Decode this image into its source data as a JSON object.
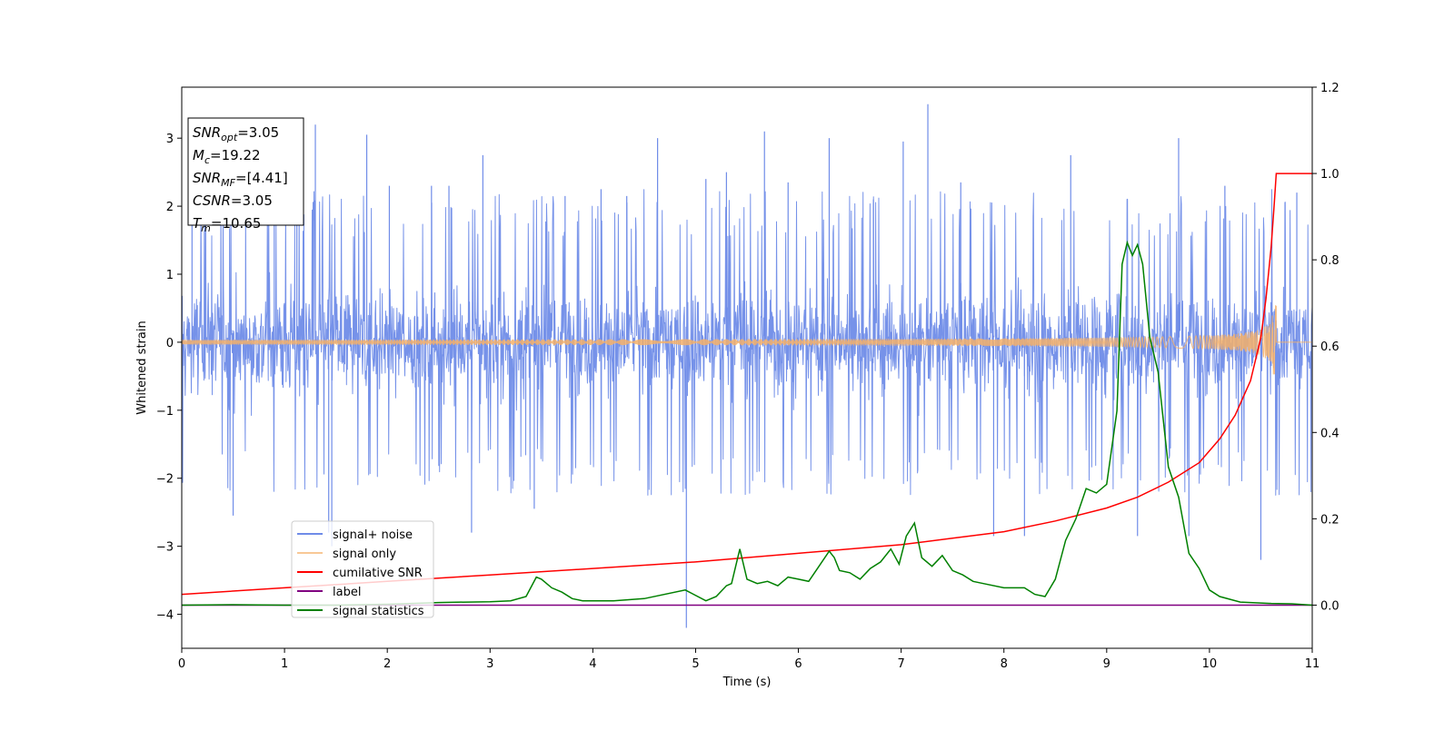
{
  "chart_data": {
    "type": "line",
    "xlabel": "Time (s)",
    "ylabel": "Whitened strain",
    "xlim": [
      0,
      11
    ],
    "ylim": [
      -4.5,
      3.75
    ],
    "y2lim": [
      -0.1,
      1.2
    ],
    "x_ticks": [
      0,
      1,
      2,
      3,
      4,
      5,
      6,
      7,
      8,
      9,
      10,
      11
    ],
    "y_ticks": [
      -4,
      -3,
      -2,
      -1,
      0,
      1,
      2,
      3
    ],
    "y_tick_labels": [
      "−4",
      "−3",
      "−2",
      "−1",
      "0",
      "1",
      "2",
      "3"
    ],
    "y2_ticks": [
      0.0,
      0.2,
      0.4,
      0.6,
      0.8,
      1.0,
      1.2
    ],
    "y2_tick_labels": [
      "0.0",
      "0.2",
      "0.4",
      "0.6",
      "0.8",
      "1.0",
      "1.2"
    ],
    "grid": false,
    "legend_placement": "lower-left",
    "annotation": {
      "lines": [
        {
          "sym": "SNR",
          "sub": "opt",
          "value": "=3.05"
        },
        {
          "sym": "M",
          "sub": "c",
          "value": "=19.22"
        },
        {
          "sym": "SNR",
          "sub": "MF",
          "value": "=[4.41]"
        },
        {
          "sym": "CSNR",
          "sub": "",
          "value": "=3.05"
        },
        {
          "sym": "T",
          "sub": "m",
          "value": "=10.65"
        }
      ]
    },
    "series": [
      {
        "name": "signal+ noise",
        "axis": "left",
        "color": "#6f8ce8",
        "kind": "noise",
        "envelope": 1.5,
        "spikes": [
          {
            "x": 0.1,
            "y": 2.0
          },
          {
            "x": 0.5,
            "y": -2.55
          },
          {
            "x": 0.9,
            "y": 2.5
          },
          {
            "x": 1.12,
            "y": 2.5
          },
          {
            "x": 1.3,
            "y": 3.2
          },
          {
            "x": 1.43,
            "y": -2.8
          },
          {
            "x": 1.46,
            "y": -3.0
          },
          {
            "x": 1.8,
            "y": 3.05
          },
          {
            "x": 2.02,
            "y": 2.3
          },
          {
            "x": 2.43,
            "y": 2.3
          },
          {
            "x": 2.6,
            "y": 2.3
          },
          {
            "x": 2.82,
            "y": -2.8
          },
          {
            "x": 2.93,
            "y": 2.75
          },
          {
            "x": 3.43,
            "y": -2.45
          },
          {
            "x": 3.73,
            "y": 2.15
          },
          {
            "x": 4.08,
            "y": 2.25
          },
          {
            "x": 4.33,
            "y": 2.15
          },
          {
            "x": 4.63,
            "y": 3.0
          },
          {
            "x": 4.91,
            "y": -4.2
          },
          {
            "x": 5.1,
            "y": 2.4
          },
          {
            "x": 5.3,
            "y": 2.5
          },
          {
            "x": 5.67,
            "y": 3.1
          },
          {
            "x": 5.9,
            "y": 2.35
          },
          {
            "x": 6.3,
            "y": 3.0
          },
          {
            "x": 6.73,
            "y": 2.1
          },
          {
            "x": 7.02,
            "y": 2.95
          },
          {
            "x": 7.26,
            "y": 3.5
          },
          {
            "x": 7.58,
            "y": 2.35
          },
          {
            "x": 7.9,
            "y": -2.85
          },
          {
            "x": 8.2,
            "y": -2.85
          },
          {
            "x": 8.65,
            "y": 2.75
          },
          {
            "x": 9.3,
            "y": -2.85
          },
          {
            "x": 9.7,
            "y": 3.0
          },
          {
            "x": 9.8,
            "y": -2.85
          },
          {
            "x": 10.15,
            "y": 2.3
          },
          {
            "x": 10.5,
            "y": -3.2
          },
          {
            "x": 10.85,
            "y": 2.2
          }
        ]
      },
      {
        "name": "signal only",
        "axis": "left",
        "color": "#f5b06a",
        "kind": "chirp",
        "merger_time": 10.65,
        "peak_amplitude": 0.55
      },
      {
        "name": "cumilative SNR",
        "axis": "right",
        "color": "#ff0000",
        "x": [
          0,
          1,
          2,
          3,
          4,
          5,
          6,
          7,
          7.5,
          8,
          8.5,
          9,
          9.3,
          9.6,
          9.9,
          10.1,
          10.25,
          10.4,
          10.5,
          10.55,
          10.6,
          10.63,
          10.65,
          11
        ],
        "y": [
          0.025,
          0.04,
          0.055,
          0.07,
          0.085,
          0.1,
          0.12,
          0.14,
          0.155,
          0.17,
          0.195,
          0.225,
          0.25,
          0.285,
          0.33,
          0.385,
          0.44,
          0.52,
          0.62,
          0.71,
          0.83,
          0.93,
          1.0,
          1.0
        ]
      },
      {
        "name": "label",
        "axis": "right",
        "color": "#800080",
        "x": [
          0,
          11
        ],
        "y": [
          0.0,
          0.0
        ]
      },
      {
        "name": "signal statistics",
        "axis": "right",
        "color": "#008000",
        "x": [
          0,
          0.5,
          1,
          1.5,
          2,
          2.5,
          3,
          3.2,
          3.35,
          3.45,
          3.5,
          3.6,
          3.7,
          3.8,
          3.9,
          4.2,
          4.5,
          4.9,
          5.1,
          5.2,
          5.3,
          5.35,
          5.43,
          5.5,
          5.6,
          5.7,
          5.8,
          5.9,
          6.0,
          6.1,
          6.2,
          6.3,
          6.35,
          6.4,
          6.5,
          6.6,
          6.7,
          6.8,
          6.9,
          6.98,
          7.05,
          7.13,
          7.2,
          7.3,
          7.4,
          7.5,
          7.6,
          7.7,
          7.8,
          8.0,
          8.2,
          8.3,
          8.4,
          8.5,
          8.6,
          8.7,
          8.8,
          8.9,
          9.0,
          9.1,
          9.15,
          9.2,
          9.25,
          9.3,
          9.35,
          9.42,
          9.5,
          9.6,
          9.7,
          9.8,
          9.9,
          10.0,
          10.1,
          10.3,
          10.6,
          10.8,
          11.0
        ],
        "y": [
          0.0,
          0.001,
          0.0,
          0.0,
          0.002,
          0.006,
          0.008,
          0.01,
          0.02,
          0.065,
          0.06,
          0.04,
          0.03,
          0.015,
          0.01,
          0.01,
          0.015,
          0.035,
          0.01,
          0.02,
          0.045,
          0.05,
          0.13,
          0.06,
          0.05,
          0.055,
          0.045,
          0.065,
          0.06,
          0.055,
          0.09,
          0.125,
          0.11,
          0.08,
          0.075,
          0.06,
          0.085,
          0.1,
          0.13,
          0.095,
          0.16,
          0.19,
          0.11,
          0.09,
          0.115,
          0.08,
          0.07,
          0.055,
          0.05,
          0.04,
          0.04,
          0.025,
          0.02,
          0.06,
          0.15,
          0.2,
          0.27,
          0.26,
          0.28,
          0.45,
          0.79,
          0.84,
          0.81,
          0.835,
          0.79,
          0.62,
          0.54,
          0.32,
          0.25,
          0.12,
          0.085,
          0.035,
          0.02,
          0.007,
          0.004,
          0.003,
          0.0
        ]
      }
    ]
  }
}
